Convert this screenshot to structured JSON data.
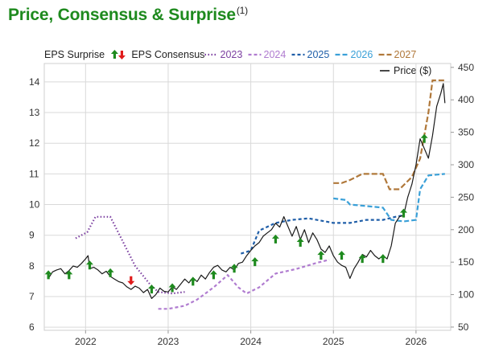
{
  "title": "Price, Consensus & Surprise",
  "title_note": "(1)",
  "legend": {
    "surprise_label": "EPS Surprise",
    "consensus_label": "EPS Consensus",
    "price_label": "Price ($)"
  },
  "colors": {
    "title": "#1e8a1e",
    "price": "#1a1a1a",
    "up_arrow": "#1e8a1e",
    "down_arrow": "#e01b1b",
    "grid": "#d9d9d9"
  },
  "chart_data": {
    "type": "line",
    "title": "Price, Consensus & Surprise",
    "x_ticks": [
      "2022",
      "2023",
      "2024",
      "2025",
      "2026"
    ],
    "x_range": [
      "2021-06",
      "2026-05"
    ],
    "y_left": {
      "label": "EPS Consensus",
      "ticks": [
        6,
        7,
        8,
        9,
        10,
        11,
        12,
        13,
        14
      ],
      "range": [
        5.9,
        14.6
      ]
    },
    "y_right": {
      "label": "Price ($)",
      "ticks": [
        50,
        100,
        150,
        200,
        250,
        300,
        350,
        400,
        450
      ],
      "range": [
        45,
        456
      ]
    },
    "grid": true,
    "legend_position": "top",
    "consensus_series": [
      {
        "name": "2023",
        "color": "#7b3fa0",
        "dash": "1.5 2.5",
        "points": [
          [
            2021.88,
            8.9
          ],
          [
            2022.02,
            9.1
          ],
          [
            2022.12,
            9.6
          ],
          [
            2022.3,
            9.6
          ],
          [
            2022.45,
            8.8
          ],
          [
            2022.6,
            8.0
          ],
          [
            2022.78,
            7.4
          ],
          [
            2022.88,
            7.15
          ],
          [
            2023.05,
            7.1
          ],
          [
            2023.2,
            7.15
          ]
        ]
      },
      {
        "name": "2024",
        "color": "#b07cd0",
        "dash": "4 3",
        "points": [
          [
            2022.88,
            6.6
          ],
          [
            2023.0,
            6.6
          ],
          [
            2023.2,
            6.7
          ],
          [
            2023.35,
            6.9
          ],
          [
            2023.55,
            7.3
          ],
          [
            2023.72,
            7.7
          ],
          [
            2023.85,
            7.3
          ],
          [
            2023.95,
            7.1
          ],
          [
            2024.1,
            7.3
          ],
          [
            2024.3,
            7.75
          ],
          [
            2024.55,
            7.9
          ],
          [
            2024.8,
            8.1
          ],
          [
            2024.95,
            8.2
          ]
        ]
      },
      {
        "name": "2025",
        "color": "#1f5ea8",
        "dash": "4 3",
        "points": [
          [
            2023.88,
            8.4
          ],
          [
            2024.0,
            8.5
          ],
          [
            2024.1,
            9.15
          ],
          [
            2024.3,
            9.4
          ],
          [
            2024.5,
            9.5
          ],
          [
            2024.7,
            9.55
          ],
          [
            2024.9,
            9.45
          ],
          [
            2025.0,
            9.4
          ],
          [
            2025.2,
            9.4
          ],
          [
            2025.4,
            9.5
          ],
          [
            2025.6,
            9.5
          ],
          [
            2025.75,
            9.6
          ],
          [
            2025.85,
            9.65
          ]
        ]
      },
      {
        "name": "2026",
        "color": "#3aa0d8",
        "dash": "6 3",
        "points": [
          [
            2025.0,
            10.2
          ],
          [
            2025.15,
            10.15
          ],
          [
            2025.2,
            10.0
          ],
          [
            2025.4,
            9.95
          ],
          [
            2025.6,
            9.9
          ],
          [
            2025.7,
            9.5
          ],
          [
            2025.85,
            9.45
          ],
          [
            2026.0,
            9.5
          ],
          [
            2026.05,
            10.5
          ],
          [
            2026.15,
            10.95
          ],
          [
            2026.35,
            11.0
          ]
        ]
      },
      {
        "name": "2027",
        "color": "#b0783a",
        "dash": "7 3",
        "points": [
          [
            2025.0,
            10.7
          ],
          [
            2025.1,
            10.7
          ],
          [
            2025.2,
            10.8
          ],
          [
            2025.35,
            11.0
          ],
          [
            2025.6,
            11.0
          ],
          [
            2025.68,
            10.5
          ],
          [
            2025.8,
            10.5
          ],
          [
            2025.95,
            10.9
          ],
          [
            2026.05,
            11.5
          ],
          [
            2026.15,
            13.0
          ],
          [
            2026.2,
            14.05
          ],
          [
            2026.35,
            14.05
          ]
        ]
      }
    ],
    "price_series": {
      "name": "Price ($)",
      "points": [
        [
          2021.55,
          125
        ],
        [
          2021.6,
          135
        ],
        [
          2021.65,
          138
        ],
        [
          2021.7,
          140
        ],
        [
          2021.75,
          132
        ],
        [
          2021.8,
          137
        ],
        [
          2021.85,
          144
        ],
        [
          2021.9,
          142
        ],
        [
          2021.95,
          148
        ],
        [
          2022.0,
          155
        ],
        [
          2022.03,
          160
        ],
        [
          2022.05,
          140
        ],
        [
          2022.1,
          142
        ],
        [
          2022.15,
          138
        ],
        [
          2022.2,
          132
        ],
        [
          2022.25,
          136
        ],
        [
          2022.3,
          128
        ],
        [
          2022.35,
          124
        ],
        [
          2022.4,
          120
        ],
        [
          2022.45,
          118
        ],
        [
          2022.5,
          112
        ],
        [
          2022.55,
          108
        ],
        [
          2022.6,
          113
        ],
        [
          2022.65,
          110
        ],
        [
          2022.7,
          103
        ],
        [
          2022.75,
          108
        ],
        [
          2022.8,
          94
        ],
        [
          2022.85,
          100
        ],
        [
          2022.9,
          110
        ],
        [
          2022.95,
          105
        ],
        [
          2023.0,
          104
        ],
        [
          2023.05,
          112
        ],
        [
          2023.1,
          108
        ],
        [
          2023.15,
          116
        ],
        [
          2023.2,
          124
        ],
        [
          2023.25,
          118
        ],
        [
          2023.3,
          126
        ],
        [
          2023.35,
          120
        ],
        [
          2023.4,
          130
        ],
        [
          2023.45,
          124
        ],
        [
          2023.5,
          134
        ],
        [
          2023.55,
          142
        ],
        [
          2023.6,
          145
        ],
        [
          2023.65,
          138
        ],
        [
          2023.7,
          135
        ],
        [
          2023.75,
          142
        ],
        [
          2023.8,
          138
        ],
        [
          2023.85,
          148
        ],
        [
          2023.9,
          150
        ],
        [
          2023.95,
          160
        ],
        [
          2024.0,
          168
        ],
        [
          2024.05,
          175
        ],
        [
          2024.1,
          180
        ],
        [
          2024.15,
          190
        ],
        [
          2024.2,
          195
        ],
        [
          2024.25,
          200
        ],
        [
          2024.3,
          210
        ],
        [
          2024.35,
          204
        ],
        [
          2024.4,
          220
        ],
        [
          2024.45,
          205
        ],
        [
          2024.5,
          190
        ],
        [
          2024.55,
          205
        ],
        [
          2024.6,
          185
        ],
        [
          2024.65,
          200
        ],
        [
          2024.7,
          180
        ],
        [
          2024.75,
          195
        ],
        [
          2024.8,
          185
        ],
        [
          2024.85,
          170
        ],
        [
          2024.9,
          165
        ],
        [
          2024.95,
          175
        ],
        [
          2025.0,
          160
        ],
        [
          2025.05,
          150
        ],
        [
          2025.1,
          145
        ],
        [
          2025.15,
          142
        ],
        [
          2025.2,
          125
        ],
        [
          2025.25,
          140
        ],
        [
          2025.3,
          150
        ],
        [
          2025.35,
          162
        ],
        [
          2025.4,
          158
        ],
        [
          2025.45,
          168
        ],
        [
          2025.5,
          160
        ],
        [
          2025.55,
          155
        ],
        [
          2025.6,
          160
        ],
        [
          2025.65,
          155
        ],
        [
          2025.7,
          175
        ],
        [
          2025.75,
          210
        ],
        [
          2025.8,
          220
        ],
        [
          2025.85,
          222
        ],
        [
          2025.9,
          250
        ],
        [
          2025.95,
          270
        ],
        [
          2026.0,
          300
        ],
        [
          2026.05,
          340
        ],
        [
          2026.1,
          325
        ],
        [
          2026.15,
          310
        ],
        [
          2026.2,
          345
        ],
        [
          2026.25,
          390
        ],
        [
          2026.3,
          410
        ],
        [
          2026.33,
          425
        ],
        [
          2026.35,
          395
        ]
      ]
    },
    "eps_surprise_markers": [
      {
        "x": 2021.55,
        "y": 130,
        "dir": "up"
      },
      {
        "x": 2021.8,
        "y": 130,
        "dir": "up"
      },
      {
        "x": 2022.05,
        "y": 145,
        "dir": "up"
      },
      {
        "x": 2022.3,
        "y": 133,
        "dir": "up"
      },
      {
        "x": 2022.55,
        "y": 122,
        "dir": "down"
      },
      {
        "x": 2022.8,
        "y": 108,
        "dir": "up"
      },
      {
        "x": 2023.05,
        "y": 110,
        "dir": "up"
      },
      {
        "x": 2023.3,
        "y": 120,
        "dir": "up"
      },
      {
        "x": 2023.55,
        "y": 130,
        "dir": "up"
      },
      {
        "x": 2023.8,
        "y": 140,
        "dir": "up"
      },
      {
        "x": 2024.05,
        "y": 150,
        "dir": "up"
      },
      {
        "x": 2024.3,
        "y": 185,
        "dir": "up"
      },
      {
        "x": 2024.6,
        "y": 180,
        "dir": "up"
      },
      {
        "x": 2024.85,
        "y": 160,
        "dir": "up"
      },
      {
        "x": 2025.1,
        "y": 160,
        "dir": "up"
      },
      {
        "x": 2025.35,
        "y": 155,
        "dir": "up"
      },
      {
        "x": 2025.6,
        "y": 155,
        "dir": "up"
      },
      {
        "x": 2025.85,
        "y": 225,
        "dir": "up"
      },
      {
        "x": 2026.1,
        "y": 340,
        "dir": "up"
      }
    ]
  }
}
